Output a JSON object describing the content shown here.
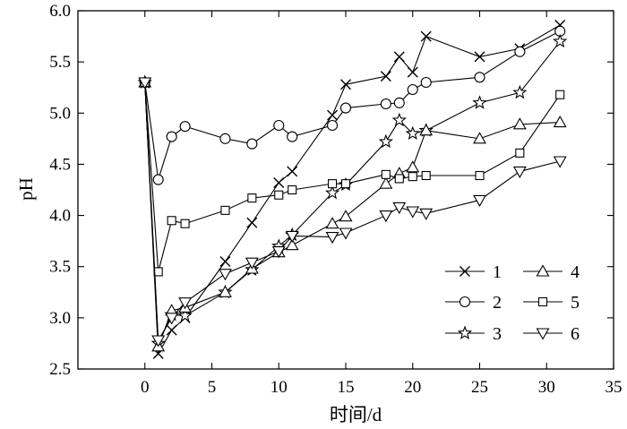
{
  "chart_data": {
    "type": "line",
    "title": "",
    "xlabel": "时间/d",
    "ylabel": "pH",
    "xlim": [
      -5,
      35
    ],
    "ylim": [
      2.5,
      6.0
    ],
    "xticks": [
      0,
      5,
      10,
      15,
      20,
      25,
      30,
      35
    ],
    "yticks": [
      2.5,
      3.0,
      3.5,
      4.0,
      4.5,
      5.0,
      5.5,
      6.0
    ],
    "xtick_labels": [
      "0",
      "5",
      "10",
      "15",
      "20",
      "25",
      "30",
      "35"
    ],
    "ytick_labels": [
      "2.5",
      "3.0",
      "3.5",
      "4.0",
      "4.5",
      "5.0",
      "5.5",
      "6.0"
    ],
    "grid": false,
    "legend_position": "bottom-right",
    "series": [
      {
        "name": "1",
        "marker": "x",
        "x": [
          0,
          1,
          2,
          3,
          6,
          8,
          10,
          11,
          14,
          15,
          18,
          19,
          20,
          21,
          25,
          28,
          31
        ],
        "y": [
          5.3,
          2.65,
          2.88,
          3.0,
          3.55,
          3.93,
          4.32,
          4.43,
          4.98,
          5.28,
          5.36,
          5.55,
          5.4,
          5.75,
          5.55,
          5.63,
          5.86
        ]
      },
      {
        "name": "2",
        "marker": "circle",
        "x": [
          0,
          1,
          2,
          3,
          6,
          8,
          10,
          11,
          14,
          15,
          18,
          19,
          20,
          21,
          25,
          28,
          31
        ],
        "y": [
          5.3,
          4.35,
          4.77,
          4.87,
          4.75,
          4.7,
          4.88,
          4.77,
          4.88,
          5.05,
          5.09,
          5.1,
          5.23,
          5.3,
          5.35,
          5.6,
          5.8
        ]
      },
      {
        "name": "3",
        "marker": "star",
        "x": [
          0,
          1,
          2,
          3,
          6,
          8,
          10,
          11,
          14,
          15,
          18,
          19,
          20,
          21,
          25,
          28,
          31
        ],
        "y": [
          5.3,
          2.75,
          3.03,
          3.02,
          3.25,
          3.47,
          3.7,
          3.81,
          4.22,
          4.3,
          4.72,
          4.93,
          4.8,
          4.83,
          5.1,
          5.2,
          5.7
        ]
      },
      {
        "name": "4",
        "marker": "triangle-up",
        "x": [
          0,
          1,
          2,
          3,
          6,
          8,
          10,
          11,
          14,
          15,
          18,
          19,
          20,
          21,
          25,
          28,
          31
        ],
        "y": [
          5.3,
          2.72,
          3.07,
          3.1,
          3.25,
          3.48,
          3.64,
          3.71,
          3.92,
          3.99,
          4.31,
          4.41,
          4.47,
          4.83,
          4.75,
          4.89,
          4.91
        ]
      },
      {
        "name": "5",
        "marker": "square",
        "x": [
          0,
          1,
          2,
          3,
          6,
          8,
          10,
          11,
          14,
          15,
          18,
          19,
          20,
          21,
          25,
          28,
          31
        ],
        "y": [
          5.3,
          3.45,
          3.95,
          3.92,
          4.05,
          4.17,
          4.2,
          4.25,
          4.31,
          4.31,
          4.4,
          4.36,
          4.38,
          4.39,
          4.39,
          4.61,
          5.18
        ]
      },
      {
        "name": "6",
        "marker": "triangle-down",
        "x": [
          0,
          1,
          2,
          3,
          6,
          8,
          10,
          11,
          14,
          15,
          18,
          19,
          20,
          21,
          25,
          28,
          31
        ],
        "y": [
          5.3,
          2.78,
          3.0,
          3.15,
          3.43,
          3.54,
          3.65,
          3.8,
          3.79,
          3.83,
          4.0,
          4.08,
          4.04,
          4.02,
          4.15,
          4.43,
          4.53
        ]
      }
    ]
  }
}
